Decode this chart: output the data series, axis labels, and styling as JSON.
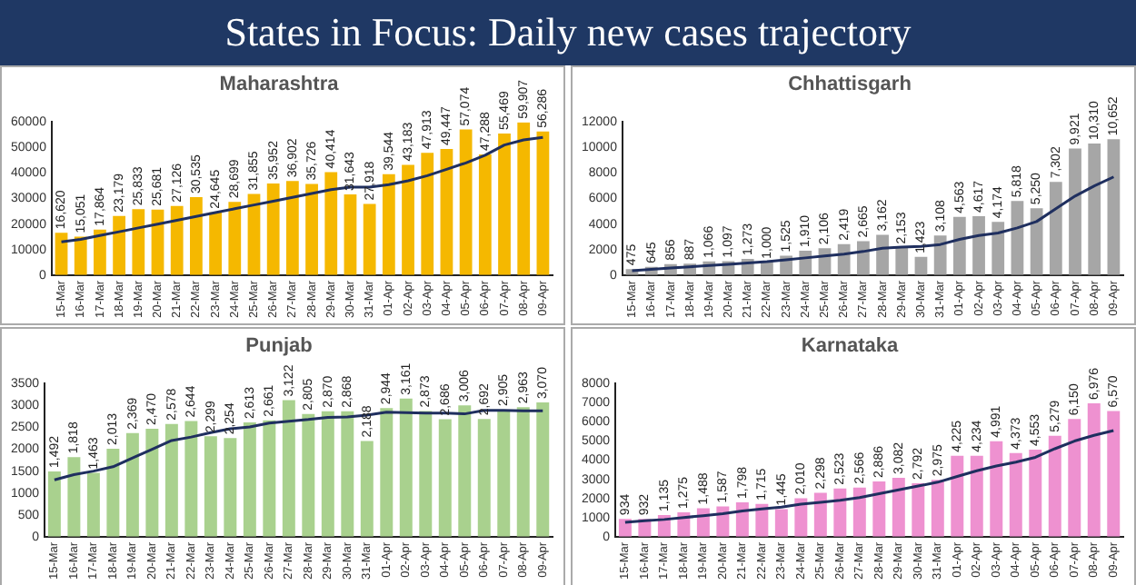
{
  "chart_data": [
    {
      "type": "other",
      "title": "States in Focus: Daily new cases trajectory"
    },
    {
      "type": "bar",
      "title": "Maharashtra",
      "categories": [
        "15-Mar",
        "16-Mar",
        "17-Mar",
        "18-Mar",
        "19-Mar",
        "20-Mar",
        "21-Mar",
        "22-Mar",
        "23-Mar",
        "24-Mar",
        "25-Mar",
        "26-Mar",
        "27-Mar",
        "28-Mar",
        "29-Mar",
        "30-Mar",
        "31-Mar",
        "01-Apr",
        "02-Apr",
        "03-Apr",
        "04-Apr",
        "05-Apr",
        "06-Apr",
        "07-Apr",
        "08-Apr",
        "09-Apr"
      ],
      "ylim": [
        0,
        60000
      ],
      "yticks": [
        0,
        10000,
        20000,
        30000,
        40000,
        50000,
        60000
      ],
      "grid": false,
      "marker": "none",
      "series": [
        {
          "type": "bar",
          "color": "#f5b800",
          "values": [
            16620,
            15051,
            17864,
            23179,
            25833,
            25681,
            27126,
            30535,
            24645,
            28699,
            31855,
            35952,
            36902,
            35726,
            40414,
            31643,
            27918,
            39544,
            43183,
            47913,
            49447,
            57074,
            47288,
            55469,
            59907,
            56286
          ],
          "value_labels": [
            "16,620",
            "15,051",
            "17,864",
            "23,179",
            "25,833",
            "25,681",
            "27,126",
            "30,535",
            "24,645",
            "28,699",
            "31,855",
            "35,952",
            "36,902",
            "35,726",
            "40,414",
            "31,643",
            "27,918",
            "39,544",
            "43,183",
            "47,913",
            "49,447",
            "57,074",
            "47,288",
            "55,469",
            "59,907",
            "56,286"
          ]
        },
        {
          "type": "line",
          "color": "#1f2f5f",
          "values": [
            13000,
            14000,
            15500,
            17000,
            18500,
            20000,
            21500,
            23000,
            24500,
            26000,
            27500,
            29000,
            30500,
            32000,
            33500,
            34500,
            34500,
            35500,
            37000,
            39000,
            41500,
            44000,
            47000,
            51000,
            53000,
            54000
          ]
        }
      ]
    },
    {
      "type": "bar",
      "title": "Chhattisgarh",
      "categories": [
        "15-Mar",
        "16-Mar",
        "17-Mar",
        "18-Mar",
        "19-Mar",
        "20-Mar",
        "21-Mar",
        "22-Mar",
        "23-Mar",
        "24-Mar",
        "25-Mar",
        "26-Mar",
        "27-Mar",
        "28-Mar",
        "29-Mar",
        "30-Mar",
        "31-Mar",
        "01-Apr",
        "02-Apr",
        "03-Apr",
        "04-Apr",
        "05-Apr",
        "06-Apr",
        "07-Apr",
        "08-Apr",
        "09-Apr"
      ],
      "ylim": [
        0,
        12000
      ],
      "yticks": [
        0,
        2000,
        4000,
        6000,
        8000,
        10000,
        12000
      ],
      "grid": false,
      "marker": "none",
      "series": [
        {
          "type": "bar",
          "color": "#a6a6a6",
          "values": [
            475,
            645,
            856,
            887,
            1066,
            1097,
            1273,
            1000,
            1525,
            1910,
            2106,
            2419,
            2665,
            3162,
            2153,
            1423,
            3108,
            4563,
            4617,
            4174,
            5818,
            5250,
            7302,
            9921,
            10310,
            10652
          ],
          "value_labels": [
            "475",
            "645",
            "856",
            "887",
            "1,066",
            "1,097",
            "1,273",
            "1,000",
            "1,525",
            "1,910",
            "2,106",
            "2,419",
            "2,665",
            "3,162",
            "2,153",
            "1,423",
            "3,108",
            "4,563",
            "4,617",
            "4,174",
            "5,818",
            "5,250",
            "7,302",
            "9,921",
            "10,310",
            "10,652"
          ]
        },
        {
          "type": "line",
          "color": "#1f2f5f",
          "values": [
            350,
            450,
            550,
            650,
            750,
            850,
            950,
            1050,
            1200,
            1350,
            1500,
            1650,
            1850,
            2100,
            2200,
            2250,
            2400,
            2800,
            3100,
            3300,
            3700,
            4200,
            5200,
            6200,
            7000,
            7700
          ]
        }
      ]
    },
    {
      "type": "bar",
      "title": "Punjab",
      "categories": [
        "15-Mar",
        "16-Mar",
        "17-Mar",
        "18-Mar",
        "19-Mar",
        "20-Mar",
        "21-Mar",
        "22-Mar",
        "23-Mar",
        "24-Mar",
        "25-Mar",
        "26-Mar",
        "27-Mar",
        "28-Mar",
        "29-Mar",
        "30-Mar",
        "31-Mar",
        "01-Apr",
        "02-Apr",
        "03-Apr",
        "04-Apr",
        "05-Apr",
        "06-Apr",
        "07-Apr",
        "08-Apr",
        "09-Apr"
      ],
      "ylim": [
        0,
        3500
      ],
      "yticks": [
        0,
        500,
        1000,
        1500,
        2000,
        2500,
        3000,
        3500
      ],
      "grid": false,
      "marker": "none",
      "series": [
        {
          "type": "bar",
          "color": "#a9d18e",
          "values": [
            1492,
            1818,
            1463,
            2013,
            2369,
            2470,
            2578,
            2644,
            2299,
            2254,
            2613,
            2661,
            3122,
            2805,
            2870,
            2868,
            2188,
            2944,
            3161,
            2873,
            2686,
            3006,
            2692,
            2905,
            2963,
            3070
          ],
          "value_labels": [
            "1,492",
            "1,818",
            "1,463",
            "2,013",
            "2,369",
            "2,470",
            "2,578",
            "2,644",
            "2,299",
            "2,254",
            "2,613",
            "2,661",
            "3,122",
            "2,805",
            "2,870",
            "2,868",
            "2,188",
            "2,944",
            "3,161",
            "2,873",
            "2,686",
            "3,006",
            "2,692",
            "2,905",
            "2,963",
            "3,070"
          ]
        },
        {
          "type": "line",
          "color": "#1f2f5f",
          "values": [
            1300,
            1420,
            1500,
            1600,
            1800,
            2000,
            2200,
            2280,
            2380,
            2470,
            2510,
            2600,
            2640,
            2680,
            2730,
            2740,
            2780,
            2850,
            2840,
            2830,
            2830,
            2810,
            2890,
            2890,
            2880,
            2880
          ]
        }
      ]
    },
    {
      "type": "bar",
      "title": "Karnataka",
      "categories": [
        "15-Mar",
        "16-Mar",
        "17-Mar",
        "18-Mar",
        "19-Mar",
        "20-Mar",
        "21-Mar",
        "22-Mar",
        "23-Mar",
        "24-Mar",
        "25-Mar",
        "26-Mar",
        "27-Mar",
        "28-Mar",
        "29-Mar",
        "30-Mar",
        "31-Mar",
        "01-Apr",
        "02-Apr",
        "03-Apr",
        "04-Apr",
        "05-Apr",
        "06-Apr",
        "07-Apr",
        "08-Apr",
        "09-Apr"
      ],
      "ylim": [
        0,
        8000
      ],
      "yticks": [
        0,
        1000,
        2000,
        3000,
        4000,
        5000,
        6000,
        7000,
        8000
      ],
      "grid": false,
      "marker": "none",
      "series": [
        {
          "type": "bar",
          "color": "#ee91d0",
          "values": [
            934,
            932,
            1135,
            1275,
            1488,
            1587,
            1798,
            1715,
            1445,
            2010,
            2298,
            2523,
            2566,
            2886,
            3082,
            2792,
            2975,
            4225,
            4234,
            4991,
            4373,
            4553,
            5279,
            6150,
            6976,
            6570
          ],
          "value_labels": [
            "934",
            "932",
            "1,135",
            "1,275",
            "1,488",
            "1,587",
            "1,798",
            "1,715",
            "1,445",
            "2,010",
            "2,298",
            "2,523",
            "2,566",
            "2,886",
            "3,082",
            "2,792",
            "2,975",
            "4,225",
            "4,234",
            "4,991",
            "4,373",
            "4,553",
            "5,279",
            "6,150",
            "6,976",
            "6,570"
          ]
        },
        {
          "type": "line",
          "color": "#1f2f5f",
          "values": [
            750,
            830,
            900,
            1000,
            1100,
            1200,
            1350,
            1450,
            1550,
            1700,
            1800,
            1900,
            2050,
            2250,
            2450,
            2650,
            2850,
            3150,
            3450,
            3700,
            3900,
            4150,
            4600,
            5000,
            5300,
            5550
          ]
        }
      ]
    }
  ]
}
